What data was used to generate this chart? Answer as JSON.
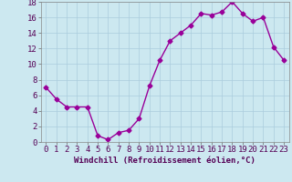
{
  "x": [
    0,
    1,
    2,
    3,
    4,
    5,
    6,
    7,
    8,
    9,
    10,
    11,
    12,
    13,
    14,
    15,
    16,
    17,
    18,
    19,
    20,
    21,
    22,
    23
  ],
  "y": [
    7.0,
    5.5,
    4.5,
    4.5,
    4.5,
    0.8,
    0.3,
    1.2,
    1.5,
    3.0,
    7.2,
    10.5,
    13.0,
    14.0,
    15.0,
    16.5,
    16.3,
    16.7,
    18.0,
    16.5,
    15.5,
    16.0,
    12.2,
    10.5
  ],
  "line_color": "#990099",
  "marker": "D",
  "markersize": 2.5,
  "linewidth": 1.0,
  "bg_color": "#cce8f0",
  "grid_color": "#aaccdd",
  "xlabel": "Windchill (Refroidissement éolien,°C)",
  "xlabel_fontsize": 6.5,
  "tick_fontsize": 6.5,
  "xlim": [
    -0.5,
    23.5
  ],
  "ylim": [
    0,
    18
  ],
  "yticks": [
    0,
    2,
    4,
    6,
    8,
    10,
    12,
    14,
    16,
    18
  ],
  "xticks": [
    0,
    1,
    2,
    3,
    4,
    5,
    6,
    7,
    8,
    9,
    10,
    11,
    12,
    13,
    14,
    15,
    16,
    17,
    18,
    19,
    20,
    21,
    22,
    23
  ]
}
